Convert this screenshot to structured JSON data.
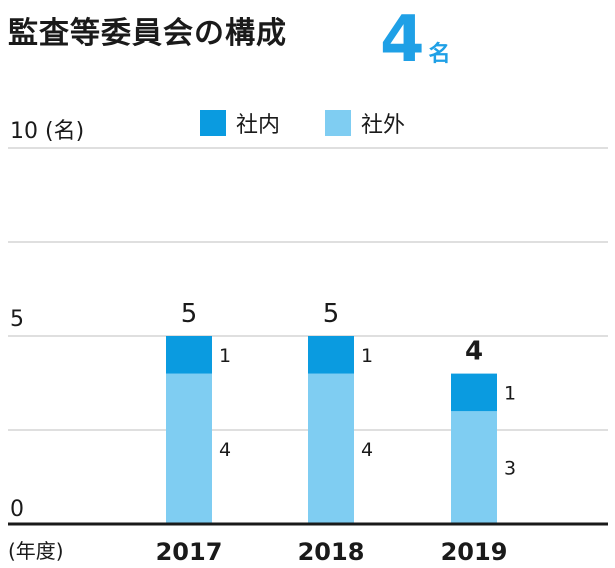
{
  "title": "監査等委員会の構成",
  "headline": {
    "value": "4",
    "unit": "名"
  },
  "colors": {
    "inside": "#0a9be0",
    "outside": "#7fcdf2",
    "grid": "#bfbfbf",
    "axis": "#1a1a1a"
  },
  "chart_data": {
    "type": "bar",
    "stacked": true,
    "categories": [
      "2017",
      "2018",
      "2019"
    ],
    "series": [
      {
        "name": "社外",
        "values": [
          4,
          4,
          3
        ]
      },
      {
        "name": "社内",
        "values": [
          1,
          1,
          1
        ]
      }
    ],
    "totals": [
      5,
      5,
      4
    ],
    "ylim": [
      0,
      10
    ],
    "yticks": [
      0,
      5,
      10
    ],
    "ytick_labels": [
      "0",
      "5",
      "10 (名)"
    ],
    "xlabel": "(年度)",
    "legend": {
      "position": "top",
      "entries": [
        "社内",
        "社外"
      ]
    },
    "grid": true
  }
}
